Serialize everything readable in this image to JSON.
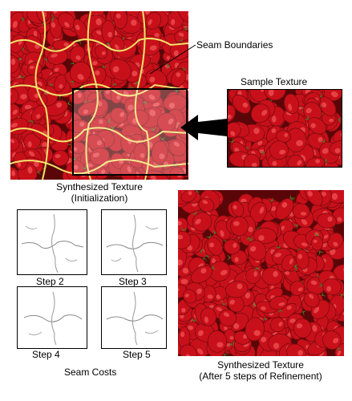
{
  "labels": {
    "seam_boundaries": "Seam Boundaries",
    "sample_texture": "Sample Texture",
    "synth_init_line1": "Synthesized Texture",
    "synth_init_line2": "(Initialization)",
    "step2": "Step 2",
    "step3": "Step 3",
    "step4": "Step 4",
    "step5": "Step 5",
    "seam_costs": "Seam Costs",
    "synth_final_line1": "Synthesized Texture",
    "synth_final_line2": "(After 5 steps of Refinement)"
  },
  "colors": {
    "strawberry_red": "#c8101a",
    "strawberry_dark": "#5a0608",
    "leaf_green": "#3f7f2a",
    "seam_yellow": "#f1e46b",
    "arrow_black": "#000000"
  }
}
